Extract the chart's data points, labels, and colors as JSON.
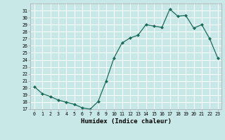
{
  "x": [
    0,
    1,
    2,
    3,
    4,
    5,
    6,
    7,
    8,
    9,
    10,
    11,
    12,
    13,
    14,
    15,
    16,
    17,
    18,
    19,
    20,
    21,
    22,
    23
  ],
  "y": [
    20.2,
    19.2,
    18.8,
    18.3,
    18.0,
    17.7,
    17.2,
    17.0,
    18.1,
    21.0,
    24.3,
    26.4,
    27.1,
    27.5,
    29.0,
    28.8,
    28.6,
    31.2,
    30.2,
    30.3,
    28.5,
    29.0,
    27.0,
    24.3
  ],
  "xlabel": "Humidex (Indice chaleur)",
  "line_color": "#1a6b5a",
  "marker_color": "#1a6b5a",
  "bg_color": "#c8e8e8",
  "grid_color": "#ffffff",
  "ylim": [
    17,
    32
  ],
  "xlim": [
    -0.5,
    23.5
  ],
  "yticks": [
    17,
    18,
    19,
    20,
    21,
    22,
    23,
    24,
    25,
    26,
    27,
    28,
    29,
    30,
    31
  ],
  "xticks": [
    0,
    1,
    2,
    3,
    4,
    5,
    6,
    7,
    8,
    9,
    10,
    11,
    12,
    13,
    14,
    15,
    16,
    17,
    18,
    19,
    20,
    21,
    22,
    23
  ]
}
